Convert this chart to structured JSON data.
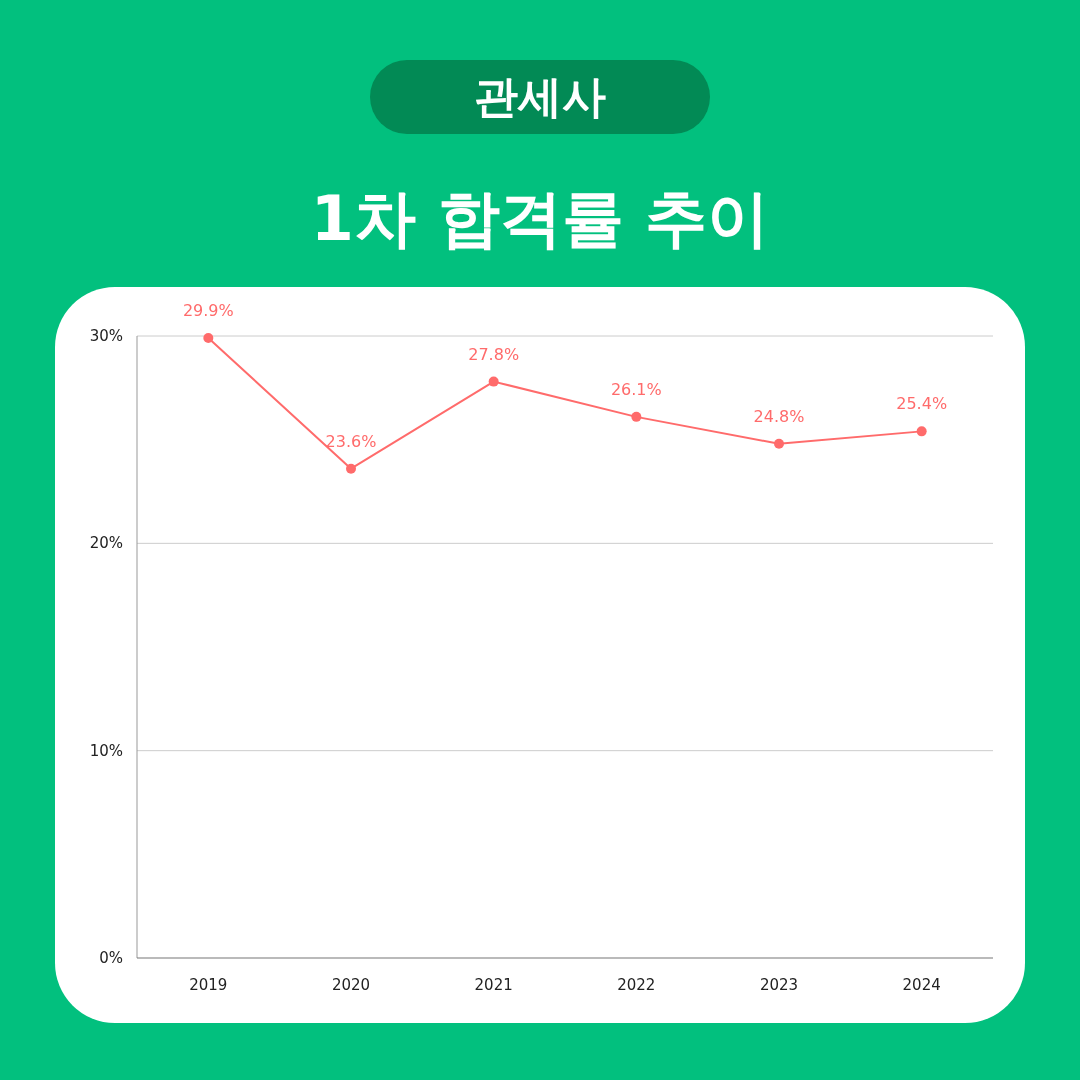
{
  "chart_data": {
    "type": "line",
    "subtitle": "관세사",
    "title": "1차 합격률 추이",
    "categories": [
      "2019",
      "2020",
      "2021",
      "2022",
      "2023",
      "2024"
    ],
    "series": [
      {
        "color": "#ff6b6b",
        "values": [
          29.9,
          23.6,
          27.8,
          26.1,
          24.8,
          25.4
        ],
        "value_labels": [
          "29.9%",
          "23.6%",
          "27.8%",
          "26.1%",
          "24.8%",
          "25.4%"
        ]
      }
    ],
    "ylim": [
      0,
      30
    ],
    "yticks": [
      {
        "value": 0,
        "label": "0%"
      },
      {
        "value": 10,
        "label": "10%"
      },
      {
        "value": 20,
        "label": "20%"
      },
      {
        "value": 30,
        "label": "30%"
      }
    ],
    "grid": "y",
    "marker": "circle",
    "line_style": "solid"
  }
}
